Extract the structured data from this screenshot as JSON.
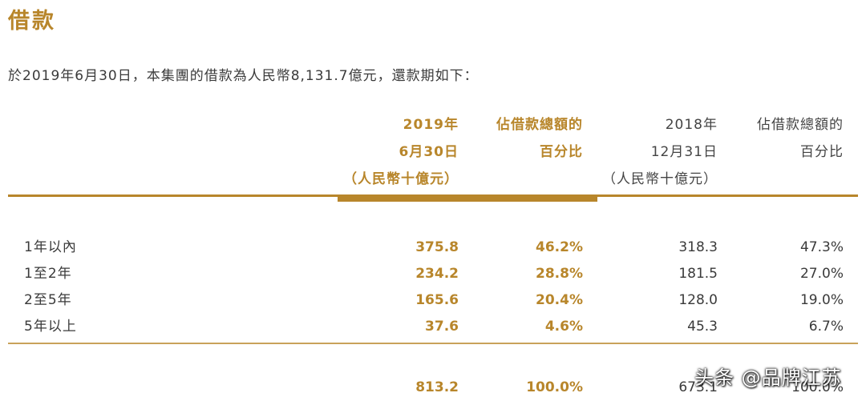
{
  "title": "借款",
  "intro": "於2019年6月30日，本集團的借款為人民幣8,131.7億元，還款期如下：",
  "columns": [
    {
      "lines": [
        "2019年",
        "6月30日",
        "（人民幣十億元）"
      ]
    },
    {
      "lines": [
        "佔借款總額的",
        "百分比"
      ]
    },
    {
      "lines": [
        "2018年",
        "12月31日",
        "（人民幣十億元）"
      ]
    },
    {
      "lines": [
        "佔借款總額的",
        "百分比"
      ]
    }
  ],
  "rows": [
    {
      "label": "1年以內",
      "v2019": "375.8",
      "p2019": "46.2%",
      "v2018": "318.3",
      "p2018": "47.3%"
    },
    {
      "label": "1至2年",
      "v2019": "234.2",
      "p2019": "28.8%",
      "v2018": "181.5",
      "p2018": "27.0%"
    },
    {
      "label": "2至5年",
      "v2019": "165.6",
      "p2019": "20.4%",
      "v2018": "128.0",
      "p2018": "19.0%"
    },
    {
      "label": "5年以上",
      "v2019": "37.6",
      "p2019": "4.6%",
      "v2018": "45.3",
      "p2018": "6.7%"
    }
  ],
  "total": {
    "label": "",
    "v2019": "813.2",
    "p2019": "100.0%",
    "v2018": "673.1",
    "p2018": "100.0%"
  },
  "watermark": "头条 @品牌江苏",
  "colors": {
    "accent": "#b8862b",
    "text": "#3a3a3a",
    "rule": "#c9a25a"
  }
}
